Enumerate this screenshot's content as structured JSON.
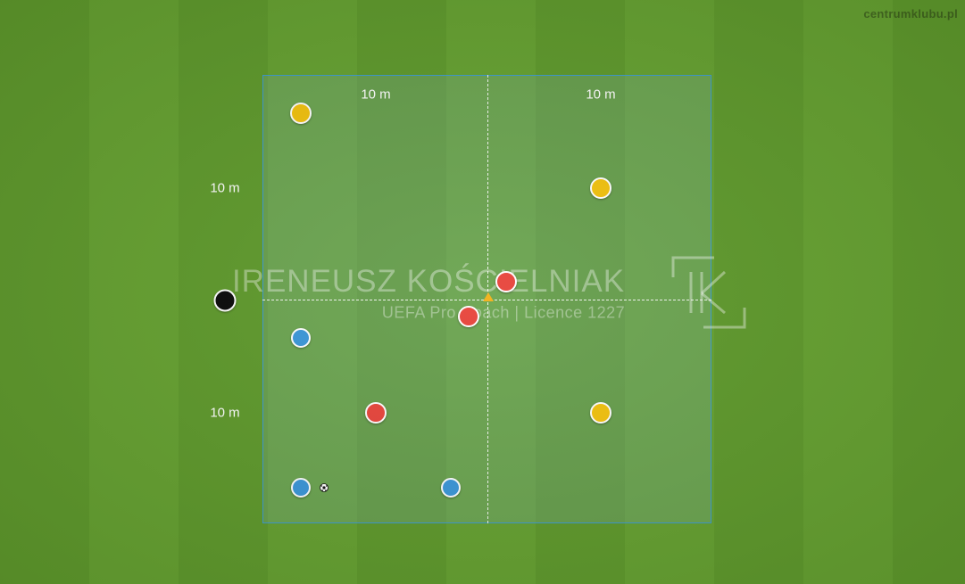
{
  "site": "centrumklubu.pl",
  "dimensions": {
    "top_left": "10 m",
    "top_right": "10 m",
    "left_upper": "10 m",
    "left_lower": "10 m"
  },
  "watermark": {
    "name": "IRENEUSZ KOŚCIELNIAK",
    "subtitle": "UEFA Pro Coach   |   Licence 1227",
    "logo_text": "IK"
  },
  "colors": {
    "team_yellow": "#f2c20e",
    "team_red": "#e8453c",
    "team_blue": "#3b97d9",
    "neutral_black": "#0b0b0b",
    "zone_border": "#3d9bd0"
  },
  "players": [
    {
      "team": "yellow"
    },
    {
      "team": "yellow"
    },
    {
      "team": "yellow"
    },
    {
      "team": "red"
    },
    {
      "team": "red"
    },
    {
      "team": "red"
    },
    {
      "team": "blue"
    },
    {
      "team": "blue"
    },
    {
      "team": "blue"
    },
    {
      "team": "black"
    }
  ]
}
